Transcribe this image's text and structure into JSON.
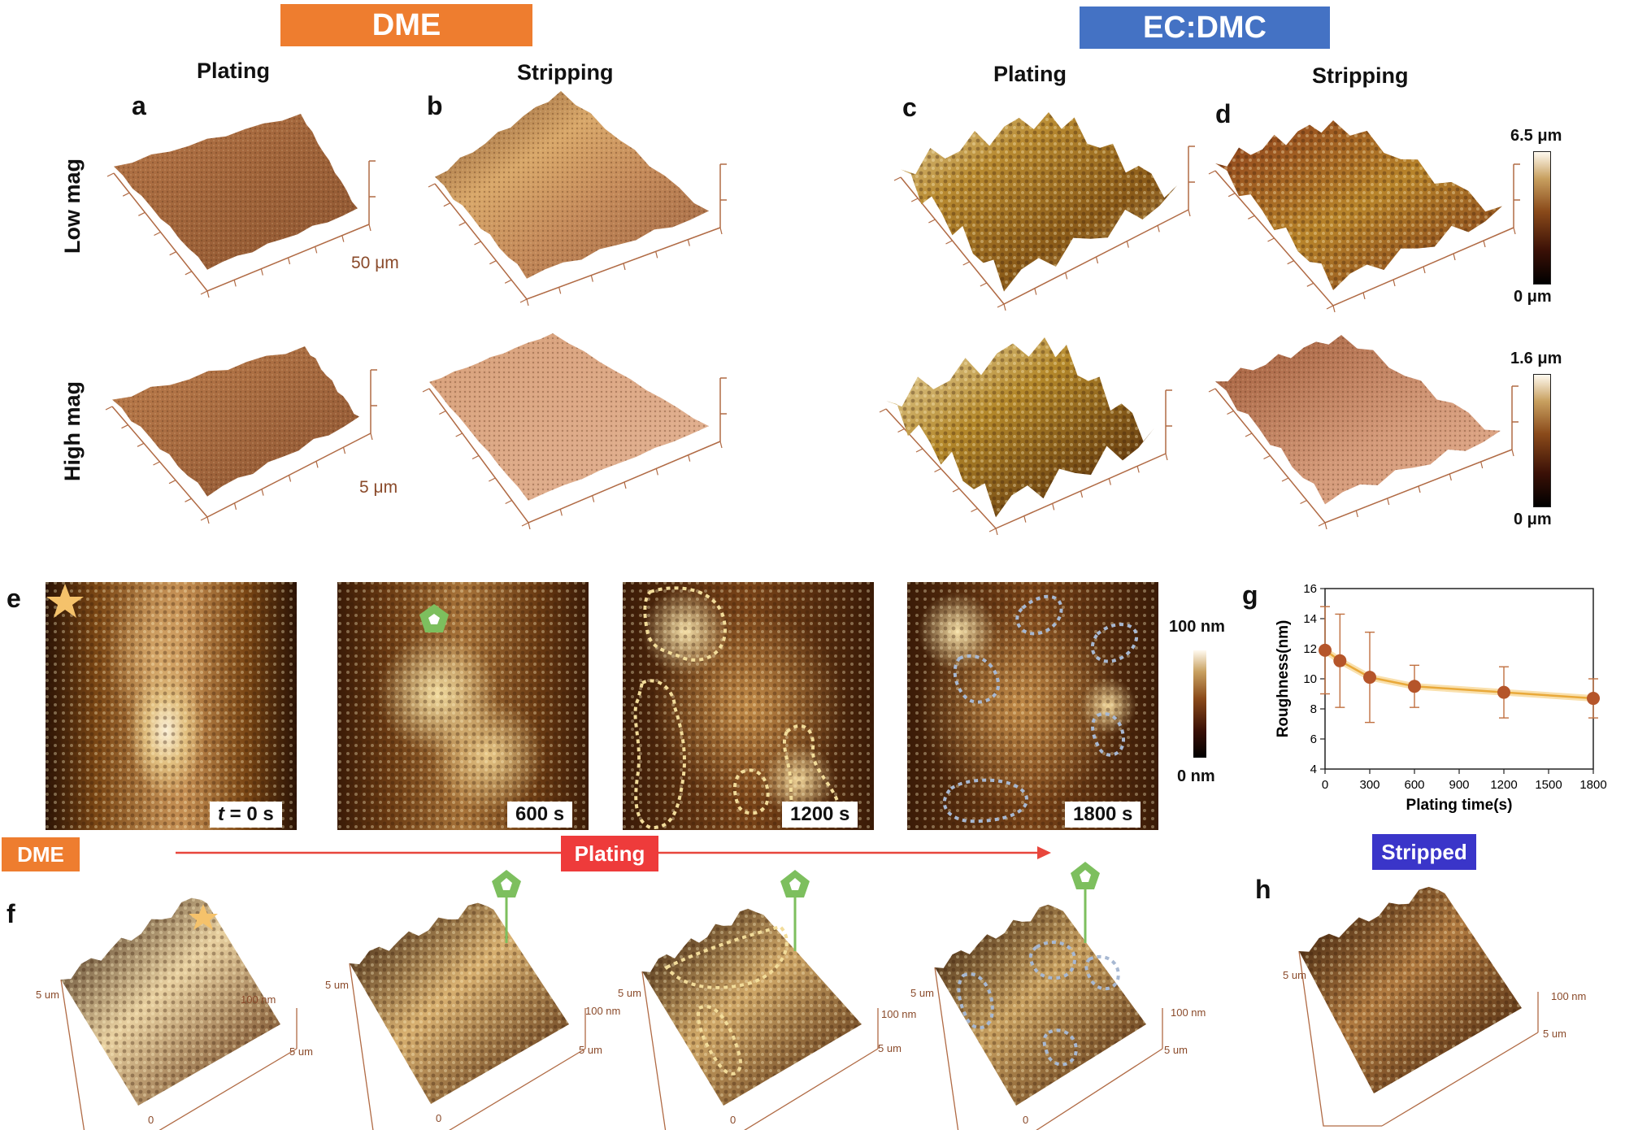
{
  "banners": {
    "dme": "DME",
    "ecdmc": "EC:DMC"
  },
  "columns": {
    "plating": "Plating",
    "stripping": "Stripping"
  },
  "rows": {
    "low": "Low mag",
    "high": "High mag"
  },
  "panels": {
    "a": "a",
    "b": "b",
    "c": "c",
    "d": "d",
    "e": "e",
    "f": "f",
    "g": "g",
    "h": "h"
  },
  "scales": {
    "low": "50 μm",
    "high": "5 μm"
  },
  "colorbars": {
    "low_max": "6.5 μm",
    "low_min": "0 μm",
    "high_max": "1.6 μm",
    "high_min": "0 μm",
    "e_max": "100 nm",
    "e_min": "0 nm"
  },
  "timepoints": {
    "t0_prefix": "t",
    "t0_suffix": " = 0 s",
    "t1": "600 s",
    "t2": "1200 s",
    "t3": "1800 s"
  },
  "bottom": {
    "dme": "DME",
    "plating": "Plating",
    "stripped": "Stripped"
  },
  "f_axes": {
    "side": "5 um",
    "zero": "0",
    "z": "100 nm"
  },
  "colors": {
    "dme": "#ee7d2f",
    "ecdmc": "#4472c4",
    "plating": "#ee3b3b",
    "stripped": "#3a35c9",
    "afm_dark": "#3d1a05",
    "afm_light": "#e8c98a"
  },
  "chart_data": {
    "type": "line",
    "xlabel": "Plating time(s)",
    "ylabel": "Roughness(nm)",
    "xticks": [
      0,
      300,
      600,
      900,
      1200,
      1500,
      1800
    ],
    "yticks": [
      4,
      6,
      8,
      10,
      12,
      14,
      16
    ],
    "xlim": [
      0,
      1800
    ],
    "ylim": [
      4,
      16
    ],
    "series": [
      {
        "x": [
          0,
          100,
          300,
          600,
          1200,
          1800
        ],
        "y": [
          11.9,
          11.2,
          10.1,
          9.5,
          9.1,
          8.7
        ],
        "err": [
          2.9,
          3.1,
          3.0,
          1.4,
          1.7,
          1.3
        ]
      }
    ]
  }
}
